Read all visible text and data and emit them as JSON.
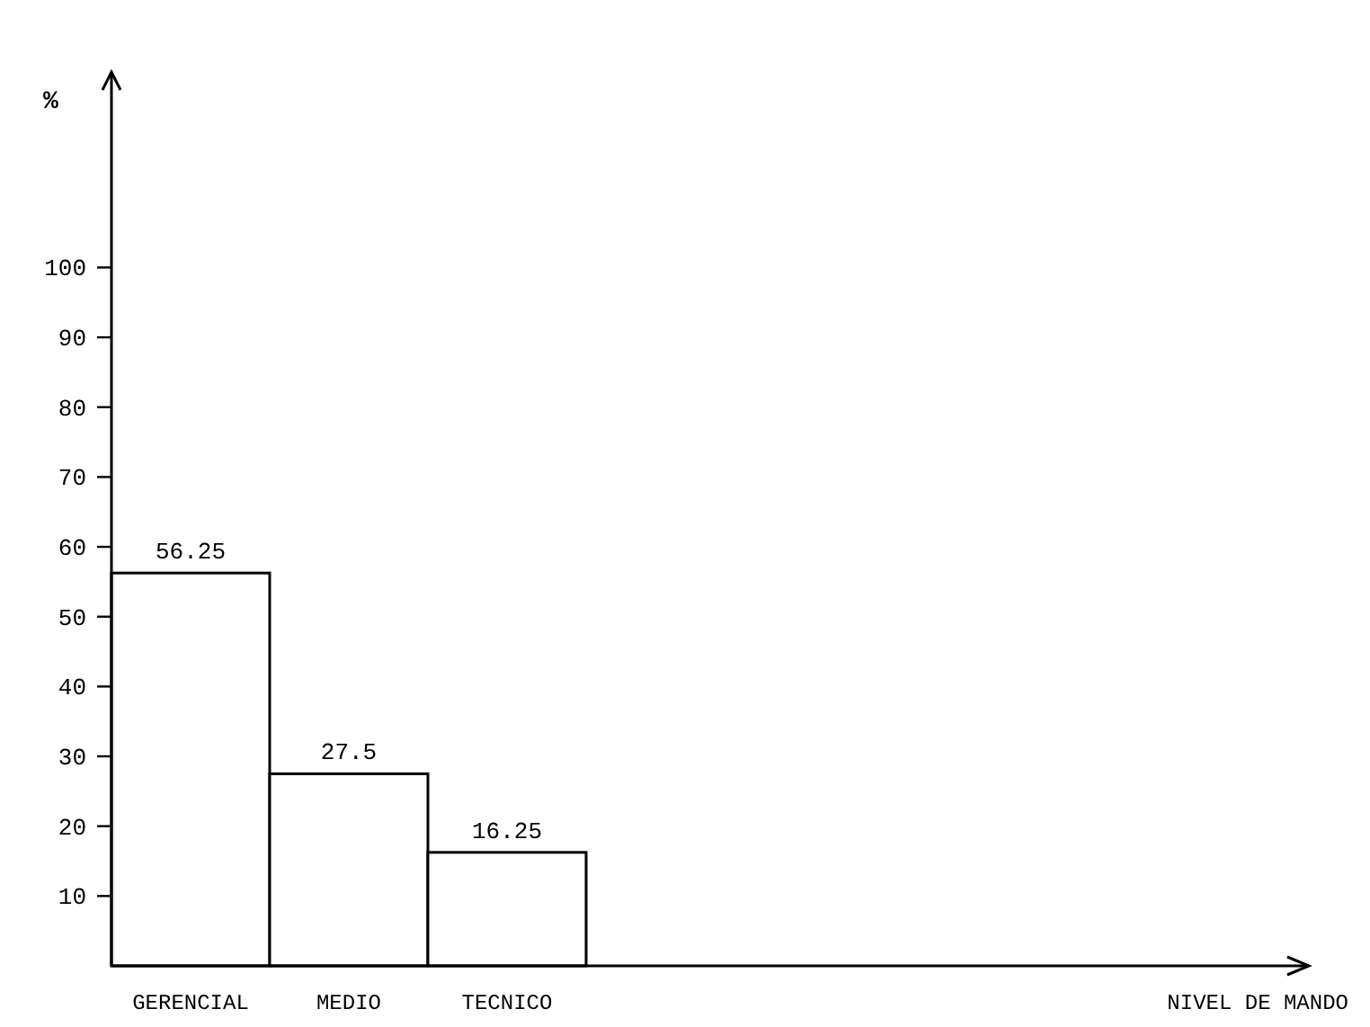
{
  "chart_data": {
    "type": "bar",
    "ylabel": "%",
    "annotations": [
      "NIVEL DE MANDO"
    ],
    "categories": [
      "GERENCIAL",
      "MEDIO",
      "TECNICO"
    ],
    "values": [
      56.25,
      27.5,
      16.25
    ],
    "color": "#ffffff",
    "ylim": [
      0,
      128
    ],
    "yticks": [
      10,
      20,
      30,
      40,
      50,
      60,
      70,
      80,
      90,
      100
    ],
    "data_labels": true
  }
}
